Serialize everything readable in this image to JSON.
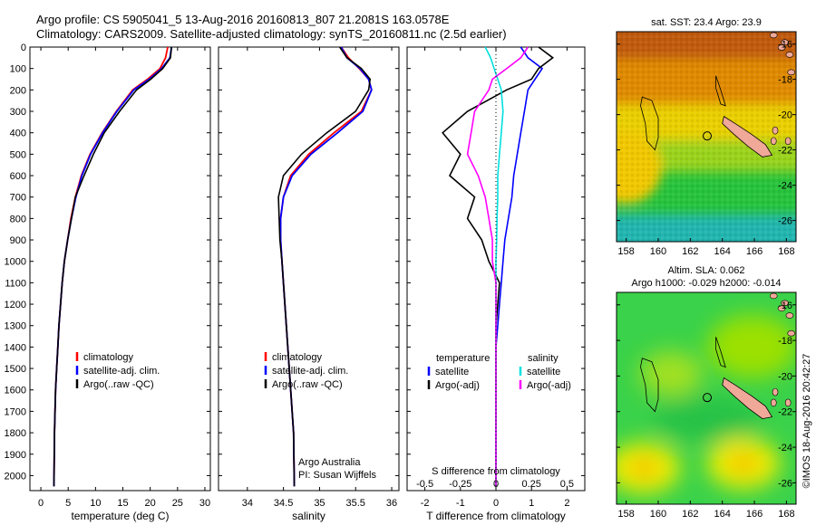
{
  "header": {
    "line1": "Argo profile: CS 5905041_5 13-Aug-2016 20160813_807 21.2081S 163.0578E",
    "line2": "Climatology: CARS2009. Satellite-adjusted climatology: synTS_20160811.nc (2.5d earlier)"
  },
  "colors": {
    "climatology": "#ff0000",
    "satellite": "#0000ff",
    "argo": "#000000",
    "sat_salinity": "#00e0e0",
    "argo_salinity": "#ff00ff"
  },
  "chart_data": [
    {
      "type": "line",
      "id": "temperature",
      "xlabel": "temperature (deg C)",
      "xlim": [
        -2,
        31
      ],
      "ylim": [
        2070,
        0
      ],
      "xticks": [
        0,
        5,
        10,
        15,
        20,
        25,
        30
      ],
      "yticks": [
        0,
        100,
        200,
        300,
        400,
        500,
        600,
        700,
        800,
        900,
        1000,
        1100,
        1200,
        1300,
        1400,
        1500,
        1600,
        1700,
        1800,
        1900,
        2000
      ],
      "legend": [
        "climatology",
        "satellite-adj. clim.",
        "Argo(..raw -QC)"
      ],
      "legend_position": "lower-center",
      "series": [
        {
          "name": "climatology",
          "color": "#ff0000",
          "x": [
            23.2,
            22.8,
            21.8,
            19.5,
            16.8,
            13.8,
            11.2,
            9.0,
            7.4,
            6.3,
            5.5,
            4.9,
            4.3,
            3.9,
            3.6,
            3.3,
            3.1,
            2.9,
            2.7,
            2.6,
            2.5,
            2.4
          ],
          "y": [
            0,
            50,
            100,
            150,
            200,
            300,
            400,
            500,
            600,
            700,
            800,
            900,
            1000,
            1100,
            1200,
            1300,
            1400,
            1500,
            1600,
            1700,
            1800,
            2050
          ]
        },
        {
          "name": "satellite-adj. clim.",
          "color": "#0000ff",
          "x": [
            23.9,
            23.6,
            22.1,
            19.8,
            17.0,
            13.9,
            11.3,
            9.1,
            7.5,
            6.4,
            5.6,
            4.9,
            4.3,
            3.9,
            3.6,
            3.3,
            3.1,
            2.9,
            2.7,
            2.6,
            2.5,
            2.4
          ],
          "y": [
            0,
            50,
            100,
            150,
            200,
            300,
            400,
            500,
            600,
            700,
            800,
            900,
            1000,
            1100,
            1200,
            1300,
            1400,
            1500,
            1600,
            1700,
            1800,
            2050
          ]
        },
        {
          "name": "Argo(..raw -QC)",
          "color": "#000000",
          "x": [
            23.9,
            23.7,
            22.3,
            20.1,
            17.5,
            14.4,
            11.6,
            9.6,
            7.9,
            6.3,
            5.6,
            4.9,
            4.3,
            3.9,
            3.6,
            3.3,
            3.1,
            2.9,
            2.7,
            2.6,
            2.5,
            2.4
          ],
          "y": [
            0,
            50,
            100,
            150,
            200,
            300,
            400,
            500,
            600,
            700,
            800,
            900,
            1000,
            1100,
            1200,
            1300,
            1400,
            1500,
            1600,
            1700,
            1800,
            2050
          ]
        }
      ]
    },
    {
      "type": "line",
      "id": "salinity",
      "xlabel": "salinity",
      "xlim": [
        33.6,
        36.1
      ],
      "ylim": [
        2070,
        0
      ],
      "xticks": [
        34,
        34.5,
        35,
        35.5,
        36
      ],
      "legend": [
        "climatology",
        "satellite-adj. clim.",
        "Argo(..raw -QC)"
      ],
      "legend_position": "lower-center",
      "annotation": [
        "Argo Australia",
        "PI: Susan Wijffels"
      ],
      "series": [
        {
          "name": "climatology",
          "color": "#ff0000",
          "x": [
            35.3,
            35.4,
            35.55,
            35.68,
            35.72,
            35.58,
            35.2,
            34.85,
            34.6,
            34.5,
            34.46,
            34.46,
            34.48,
            34.5,
            34.52,
            34.54,
            34.56,
            34.58,
            34.6,
            34.62,
            34.64,
            34.65
          ],
          "y": [
            0,
            50,
            100,
            150,
            200,
            300,
            400,
            500,
            600,
            700,
            800,
            900,
            1000,
            1100,
            1200,
            1300,
            1400,
            1500,
            1600,
            1700,
            1800,
            2050
          ]
        },
        {
          "name": "satellite-adj. clim.",
          "color": "#0000ff",
          "x": [
            35.3,
            35.38,
            35.56,
            35.68,
            35.72,
            35.6,
            35.25,
            34.88,
            34.62,
            34.5,
            34.46,
            34.46,
            34.48,
            34.5,
            34.52,
            34.54,
            34.56,
            34.58,
            34.6,
            34.62,
            34.64,
            34.65
          ],
          "y": [
            0,
            50,
            100,
            150,
            200,
            300,
            400,
            500,
            600,
            700,
            800,
            900,
            1000,
            1100,
            1200,
            1300,
            1400,
            1500,
            1600,
            1700,
            1800,
            2050
          ]
        },
        {
          "name": "Argo(..raw -QC)",
          "color": "#000000",
          "x": [
            35.28,
            35.38,
            35.58,
            35.7,
            35.68,
            35.5,
            35.1,
            34.75,
            34.5,
            34.43,
            34.44,
            34.45,
            34.48,
            34.5,
            34.52,
            34.54,
            34.56,
            34.58,
            34.6,
            34.62,
            34.64,
            34.65
          ],
          "y": [
            0,
            50,
            100,
            150,
            200,
            300,
            400,
            500,
            600,
            700,
            800,
            900,
            1000,
            1100,
            1200,
            1300,
            1400,
            1500,
            1600,
            1700,
            1800,
            2050
          ]
        }
      ]
    },
    {
      "type": "line",
      "id": "difference",
      "xlabel": "T difference from climatology",
      "xlabel_top": "S difference from climatology",
      "xlim": [
        -2.5,
        2.5
      ],
      "ylim": [
        2070,
        0
      ],
      "xticks_T": [
        -2,
        -1,
        0,
        1,
        2
      ],
      "xticks_S": [
        "-0.5",
        "-0.25",
        "0",
        "0.25",
        "0.5"
      ],
      "legend": {
        "temperature": "temperature",
        "salinity": "salinity",
        "satellite": "satellite",
        "argo_t": "Argo(-adj)",
        "argo_s": "Argo(-adj)"
      },
      "series": [
        {
          "name": "temperature satellite",
          "color": "#0000ff",
          "x": [
            0.7,
            0.9,
            1.3,
            1.1,
            0.9,
            0.8,
            0.7,
            0.6,
            0.5,
            0.45,
            0.35,
            0.25,
            0.2,
            0.15,
            0.1,
            0.05,
            0,
            0,
            0,
            0
          ],
          "y": [
            0,
            50,
            100,
            150,
            200,
            300,
            400,
            500,
            600,
            700,
            800,
            900,
            1000,
            1100,
            1200,
            1300,
            1400,
            1600,
            1800,
            2050
          ]
        },
        {
          "name": "temperature Argo(-adj)",
          "color": "#000000",
          "x": [
            1.2,
            1.6,
            1.2,
            1.0,
            0.3,
            -0.8,
            -1.5,
            -1.0,
            -1.3,
            -0.6,
            -0.8,
            -0.4,
            -0.2,
            0.1,
            0.05,
            0,
            0,
            0,
            0,
            0
          ],
          "y": [
            0,
            50,
            100,
            150,
            200,
            300,
            400,
            500,
            600,
            700,
            800,
            900,
            1000,
            1100,
            1200,
            1300,
            1400,
            1600,
            1800,
            2050
          ]
        },
        {
          "name": "salinity satellite",
          "color": "#00e0e0",
          "x": [
            -0.3,
            -0.15,
            -0.05,
            0.05,
            0.15,
            0.2,
            0.15,
            0.1,
            0.05,
            0.05,
            0.03,
            0.02,
            0,
            0,
            0,
            0,
            0,
            0,
            0,
            0
          ],
          "y": [
            0,
            50,
            100,
            150,
            200,
            300,
            400,
            500,
            600,
            700,
            800,
            900,
            1000,
            1100,
            1200,
            1300,
            1400,
            1600,
            1800,
            2050
          ]
        },
        {
          "name": "salinity Argo(-adj)",
          "color": "#ff00ff",
          "x": [
            0.9,
            0.7,
            0.3,
            -0.1,
            -0.2,
            -0.6,
            -0.7,
            -0.8,
            -0.5,
            -0.3,
            -0.2,
            -0.1,
            -0.1,
            0,
            0,
            0,
            0,
            0,
            0,
            0
          ],
          "y": [
            0,
            50,
            100,
            150,
            200,
            300,
            400,
            500,
            600,
            700,
            800,
            900,
            1000,
            1100,
            1200,
            1300,
            1400,
            1600,
            1800,
            2050
          ]
        }
      ]
    },
    {
      "type": "heatmap",
      "id": "map-sst",
      "title": "sat. SST: 23.4  Argo: 23.9",
      "xticks": [
        158,
        160,
        162,
        164,
        166,
        168
      ],
      "yticks": [
        -16,
        -18,
        -20,
        -22,
        -24,
        -26
      ]
    },
    {
      "type": "heatmap",
      "id": "map-sla",
      "title_line1": "Altim. SLA: 0.062",
      "title_line2": "Argo h1000: -0.029  h2000: -0.014",
      "xticks": [
        158,
        160,
        162,
        164,
        166,
        168
      ],
      "yticks": [
        -16,
        -18,
        -20,
        -22,
        -24,
        -26
      ]
    }
  ],
  "credit": "©IMOS 18-Aug-2016 20:42:27"
}
